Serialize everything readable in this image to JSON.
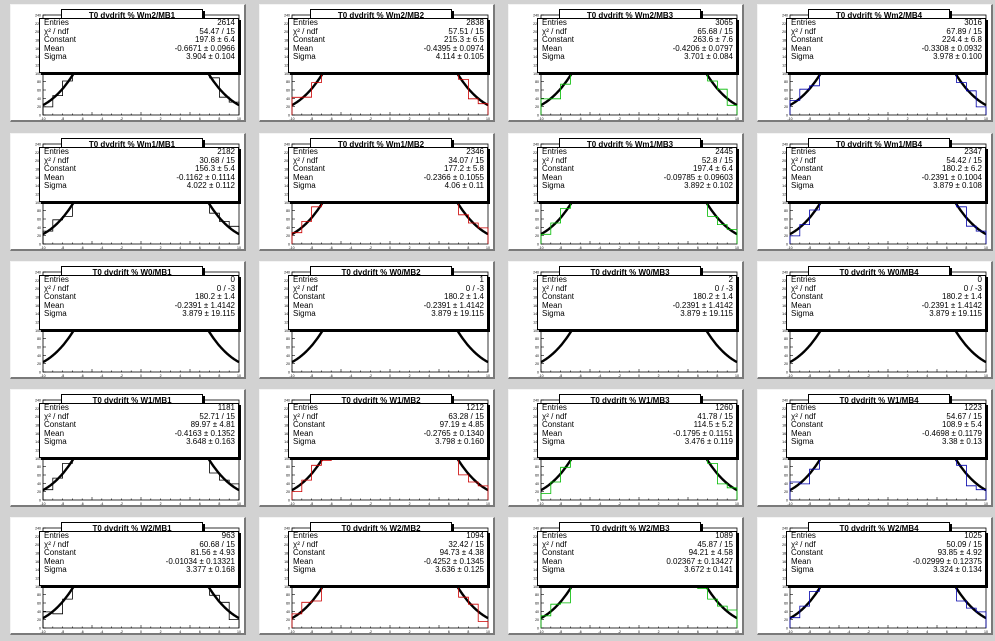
{
  "panels": [
    {
      "title": "T0 dvdrift % Wm2/MB1",
      "color": "#000000",
      "entries": "2614",
      "chi2": "54.47 / 15",
      "constant": "197.8 ± 6.4",
      "mean": "-0.6671 ± 0.0966",
      "sigma": "3.904 ± 0.104",
      "hist": "full"
    },
    {
      "title": "T0 dvdrift % Wm2/MB2",
      "color": "#cc0000",
      "entries": "2838",
      "chi2": "57.51 / 15",
      "constant": "215.3 ± 6.5",
      "mean": "-0.4395 ± 0.0974",
      "sigma": "4.114 ± 0.105",
      "hist": "full"
    },
    {
      "title": "T0 dvdrift % Wm2/MB3",
      "color": "#00bb00",
      "entries": "3065",
      "chi2": "65.68 / 15",
      "constant": "263.6 ± 7.6",
      "mean": "-0.4206 ± 0.0797",
      "sigma": "3.701 ± 0.084",
      "hist": "full"
    },
    {
      "title": "T0 dvdrift % Wm2/MB4",
      "color": "#0000aa",
      "entries": "3016",
      "chi2": "67.89 / 15",
      "constant": "224.4 ± 6.8",
      "mean": "-0.3308 ± 0.0932",
      "sigma": "3.978 ± 0.100",
      "hist": "full"
    },
    {
      "title": "T0 dvdrift % Wm1/MB1",
      "color": "#000000",
      "entries": "2182",
      "chi2": "30.68 / 15",
      "constant": "156.3 ± 5.4",
      "mean": "-0.1162 ± 0.1114",
      "sigma": "4.022 ± 0.112",
      "hist": "full"
    },
    {
      "title": "T0 dvdrift % Wm1/MB2",
      "color": "#cc0000",
      "entries": "2346",
      "chi2": "34.07 / 15",
      "constant": "177.2 ± 5.8",
      "mean": "-0.2366 ± 0.1055",
      "sigma": "4.06 ± 0.11",
      "hist": "full"
    },
    {
      "title": "T0 dvdrift % Wm1/MB3",
      "color": "#00bb00",
      "entries": "2445",
      "chi2": "52.8 / 15",
      "constant": "197.4 ± 6.4",
      "mean": "-0.09785 ± 0.09603",
      "sigma": "3.892 ± 0.102",
      "hist": "full"
    },
    {
      "title": "T0 dvdrift % Wm1/MB4",
      "color": "#0000aa",
      "entries": "2347",
      "chi2": "54.42 / 15",
      "constant": "180.2 ± 6.2",
      "mean": "-0.2391 ± 0.1004",
      "sigma": "3.879 ± 0.108",
      "hist": "full"
    },
    {
      "title": "T0 dvdrift % W0/MB1",
      "color": "#000000",
      "entries": "0",
      "chi2": "0 / -3",
      "constant": "180.2 ± 1.4",
      "mean": "-0.2391 ± 1.4142",
      "sigma": "3.879 ± 19.115",
      "hist": "none"
    },
    {
      "title": "T0 dvdrift % W0/MB2",
      "color": "#cc0000",
      "entries": "1",
      "chi2": "0 / -3",
      "constant": "180.2 ± 1.4",
      "mean": "-0.2391 ± 1.4142",
      "sigma": "3.879 ± 19.115",
      "hist": "none"
    },
    {
      "title": "T0 dvdrift % W0/MB3",
      "color": "#00bb00",
      "entries": "2",
      "chi2": "0 / -3",
      "constant": "180.2 ± 1.4",
      "mean": "-0.2391 ± 1.4142",
      "sigma": "3.879 ± 19.115",
      "hist": "none"
    },
    {
      "title": "T0 dvdrift % W0/MB4",
      "color": "#0000aa",
      "entries": "0",
      "chi2": "0 / -3",
      "constant": "180.2 ± 1.4",
      "mean": "-0.2391 ± 1.4142",
      "sigma": "3.879 ± 19.115",
      "hist": "none"
    },
    {
      "title": "T0 dvdrift % W1/MB1",
      "color": "#000000",
      "entries": "1181",
      "chi2": "52.71 / 15",
      "constant": "89.97 ± 4.81",
      "mean": "-0.4163 ± 0.1352",
      "sigma": "3.648 ± 0.163",
      "hist": "low"
    },
    {
      "title": "T0 dvdrift % W1/MB2",
      "color": "#cc0000",
      "entries": "1212",
      "chi2": "63.28 / 15",
      "constant": "97.19 ± 4.85",
      "mean": "-0.2765 ± 0.1340",
      "sigma": "3.798 ± 0.160",
      "hist": "low"
    },
    {
      "title": "T0 dvdrift % W1/MB3",
      "color": "#00bb00",
      "entries": "1260",
      "chi2": "41.78 / 15",
      "constant": "114.5 ± 5.2",
      "mean": "-0.1795 ± 0.1151",
      "sigma": "3.476 ± 0.119",
      "hist": "low"
    },
    {
      "title": "T0 dvdrift % W1/MB4",
      "color": "#0000aa",
      "entries": "1223",
      "chi2": "54.67 / 15",
      "constant": "108.9 ± 5.4",
      "mean": "-0.4698 ± 0.1179",
      "sigma": "3.38 ± 0.13",
      "hist": "low"
    },
    {
      "title": "T0 dvdrift % W2/MB1",
      "color": "#000000",
      "entries": "963",
      "chi2": "60.68 / 15",
      "constant": "81.56 ± 4.93",
      "mean": "-0.01034 ± 0.13321",
      "sigma": "3.377 ± 0.168",
      "hist": "low"
    },
    {
      "title": "T0 dvdrift % W2/MB2",
      "color": "#cc0000",
      "entries": "1094",
      "chi2": "32.42 / 15",
      "constant": "94.73 ± 4.38",
      "mean": "-0.4252 ± 0.1345",
      "sigma": "3.636 ± 0.125",
      "hist": "low"
    },
    {
      "title": "T0 dvdrift % W2/MB3",
      "color": "#00bb00",
      "entries": "1089",
      "chi2": "45.87 / 15",
      "constant": "94.21 ± 4.58",
      "mean": "0.02367 ± 0.13427",
      "sigma": "3.672 ± 0.141",
      "hist": "low"
    },
    {
      "title": "T0 dvdrift % W2/MB4",
      "color": "#0000aa",
      "entries": "1025",
      "chi2": "50.09 / 15",
      "constant": "93.85 ± 4.92",
      "mean": "-0.02999 ± 0.12375",
      "sigma": "3.324 ± 0.134",
      "hist": "low"
    }
  ],
  "labels": {
    "entries": "Entries",
    "chi2": "χ² / ndf",
    "constant": "Constant",
    "mean": "Mean",
    "sigma": "Sigma"
  },
  "chart_data": {
    "type": "histogram-grid",
    "rows": 5,
    "cols": 4,
    "fit": "gaus",
    "ylim": [
      0,
      240
    ]
  }
}
